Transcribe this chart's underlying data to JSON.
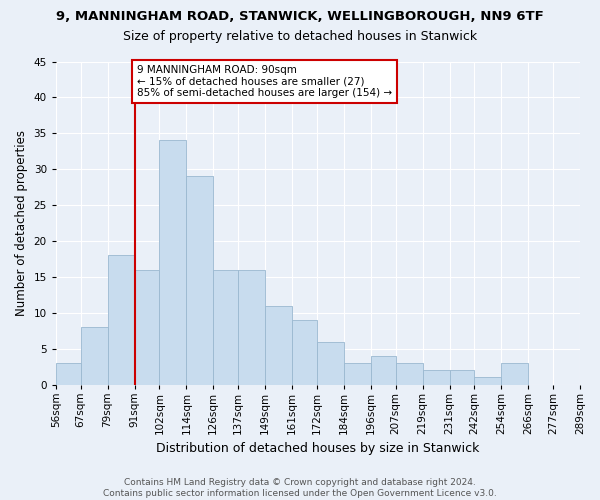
{
  "title": "9, MANNINGHAM ROAD, STANWICK, WELLINGBOROUGH, NN9 6TF",
  "subtitle": "Size of property relative to detached houses in Stanwick",
  "xlabel": "Distribution of detached houses by size in Stanwick",
  "ylabel": "Number of detached properties",
  "bar_values": [
    3,
    8,
    18,
    16,
    34,
    29,
    16,
    16,
    11,
    9,
    6,
    3,
    4,
    3,
    2,
    2,
    1,
    3,
    0,
    0
  ],
  "bin_edges": [
    56,
    67,
    79,
    91,
    102,
    114,
    126,
    137,
    149,
    161,
    172,
    184,
    196,
    207,
    219,
    231,
    242,
    254,
    266,
    277,
    289
  ],
  "bin_labels": [
    "56sqm",
    "67sqm",
    "79sqm",
    "91sqm",
    "102sqm",
    "114sqm",
    "126sqm",
    "137sqm",
    "149sqm",
    "161sqm",
    "172sqm",
    "184sqm",
    "196sqm",
    "207sqm",
    "219sqm",
    "231sqm",
    "242sqm",
    "254sqm",
    "266sqm",
    "277sqm",
    "289sqm"
  ],
  "bar_color": "#c8dcee",
  "bar_edge_color": "#9ab8d0",
  "property_line_x": 91,
  "property_line_color": "#cc0000",
  "annotation_text": "9 MANNINGHAM ROAD: 90sqm\n← 15% of detached houses are smaller (27)\n85% of semi-detached houses are larger (154) →",
  "annotation_box_color": "#ffffff",
  "annotation_box_edge_color": "#cc0000",
  "ylim": [
    0,
    45
  ],
  "background_color": "#eaf0f8",
  "footer_text": "Contains HM Land Registry data © Crown copyright and database right 2024.\nContains public sector information licensed under the Open Government Licence v3.0.",
  "grid_color": "#ffffff",
  "title_fontsize": 9.5,
  "subtitle_fontsize": 9,
  "xlabel_fontsize": 9,
  "ylabel_fontsize": 8.5,
  "tick_fontsize": 7.5,
  "footer_fontsize": 6.5
}
